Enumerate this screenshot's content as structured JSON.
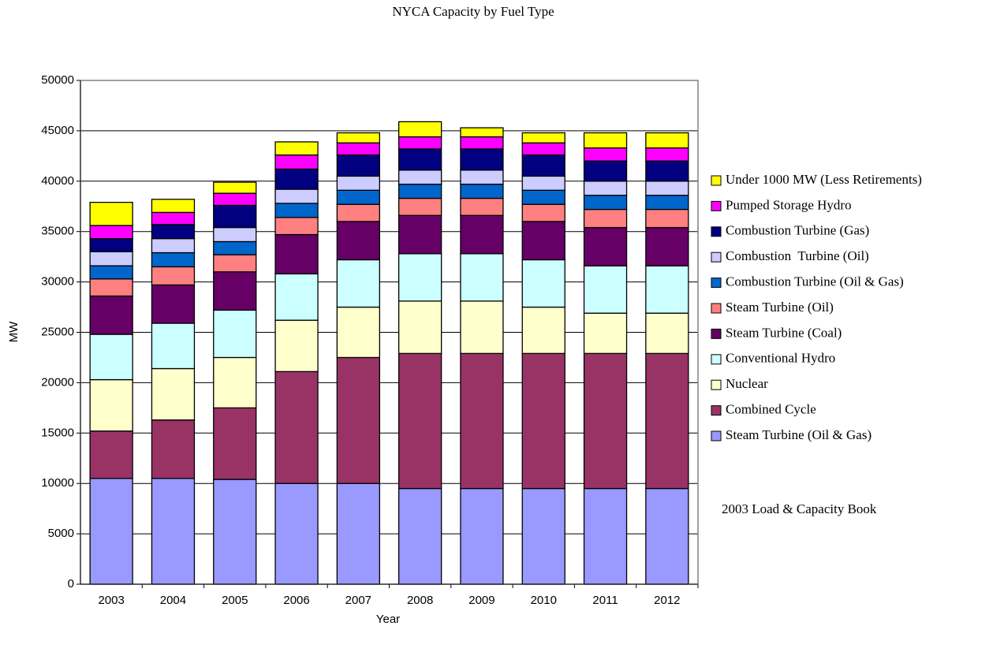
{
  "chart_data": {
    "type": "stacked_bar",
    "title": "NYCA Capacity by Fuel Type",
    "x_label": "Year",
    "y_label": "MW",
    "annotation": "2003 Load & Capacity Book",
    "categories": [
      "2003",
      "2004",
      "2005",
      "2006",
      "2007",
      "2008",
      "2009",
      "2010",
      "2011",
      "2012"
    ],
    "ylim": [
      0,
      50000
    ],
    "yticks": [
      0,
      5000,
      10000,
      15000,
      20000,
      25000,
      30000,
      35000,
      40000,
      45000,
      50000
    ],
    "grid": true,
    "legend": "right",
    "series": [
      {
        "name": "Steam Turbine (Oil & Gas)",
        "color": "#9999ff",
        "values": [
          10500,
          10500,
          10400,
          10000,
          10000,
          9500,
          9500,
          9500,
          9500,
          9500
        ]
      },
      {
        "name": "Combined Cycle",
        "color": "#993366",
        "values": [
          4700,
          5800,
          7100,
          11100,
          12500,
          13400,
          13400,
          13400,
          13400,
          13400
        ]
      },
      {
        "name": "Nuclear",
        "color": "#ffffcc",
        "values": [
          5100,
          5100,
          5000,
          5100,
          5000,
          5200,
          5200,
          4600,
          4000,
          4000
        ]
      },
      {
        "name": "Conventional Hydro",
        "color": "#ccffff",
        "values": [
          4500,
          4500,
          4700,
          4600,
          4700,
          4700,
          4700,
          4700,
          4700,
          4700
        ]
      },
      {
        "name": "Steam Turbine (Coal)",
        "color": "#660066",
        "values": [
          3800,
          3800,
          3800,
          3900,
          3800,
          3800,
          3800,
          3800,
          3800,
          3800
        ]
      },
      {
        "name": "Steam Turbine (Oil)",
        "color": "#ff8080",
        "values": [
          1700,
          1800,
          1700,
          1700,
          1700,
          1700,
          1700,
          1700,
          1800,
          1800
        ]
      },
      {
        "name": "Combustion Turbine (Oil & Gas)",
        "color": "#0066cc",
        "values": [
          1300,
          1400,
          1300,
          1400,
          1400,
          1400,
          1400,
          1400,
          1400,
          1400
        ]
      },
      {
        "name": "Combustion  Turbine (Oil)",
        "color": "#ccccff",
        "values": [
          1400,
          1400,
          1400,
          1400,
          1400,
          1400,
          1400,
          1400,
          1400,
          1400
        ]
      },
      {
        "name": "Combustion Turbine (Gas)",
        "color": "#000080",
        "values": [
          1300,
          1400,
          2200,
          2000,
          2100,
          2100,
          2100,
          2100,
          2000,
          2000
        ]
      },
      {
        "name": "Pumped Storage Hydro",
        "color": "#ff00ff",
        "values": [
          1300,
          1200,
          1200,
          1400,
          1200,
          1200,
          1200,
          1200,
          1300,
          1300
        ]
      },
      {
        "name": "Under 1000 MW (Less Retirements)",
        "color": "#ffff00",
        "values": [
          2300,
          1300,
          1100,
          1300,
          1000,
          1500,
          900,
          1000,
          1500,
          1500
        ]
      }
    ]
  }
}
